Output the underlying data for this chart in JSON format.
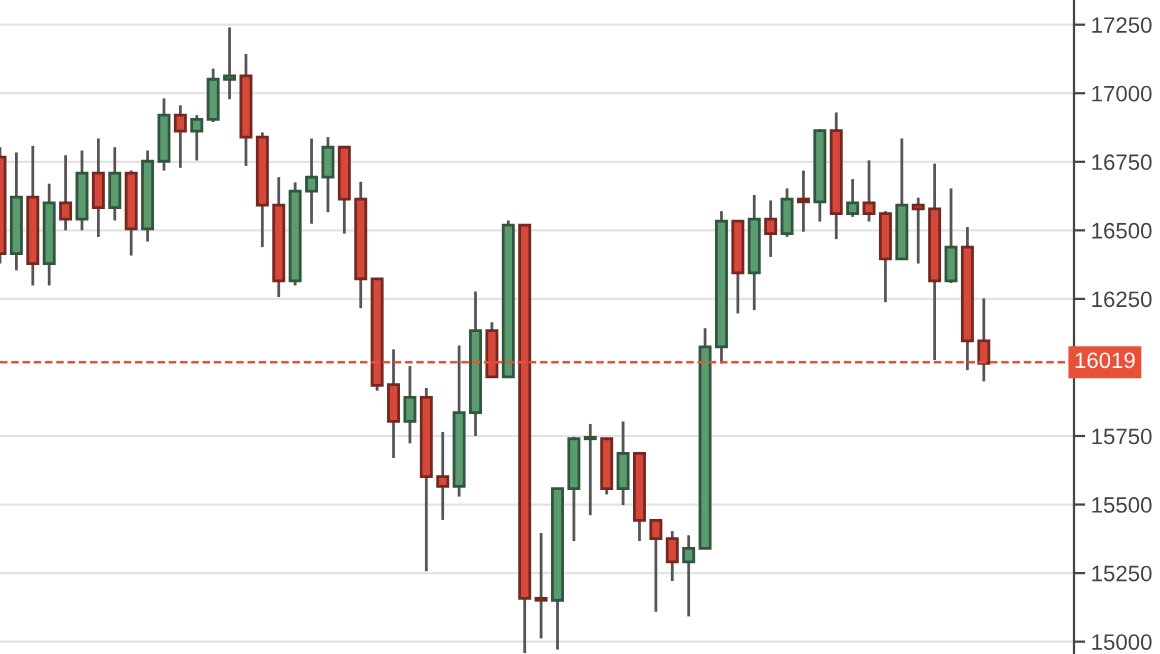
{
  "chart_data": {
    "type": "candlestick",
    "categories": [
      null,
      null,
      null,
      null,
      null,
      null,
      null,
      null,
      null,
      null,
      null,
      null,
      null,
      null,
      null,
      null,
      null,
      null,
      null,
      null,
      null,
      null,
      null,
      null,
      null,
      null,
      null,
      null,
      null,
      null,
      null,
      null,
      null,
      null,
      null,
      null,
      null,
      null,
      null,
      null,
      null,
      null,
      null,
      null,
      null,
      null,
      null,
      null,
      null,
      null,
      null,
      null,
      null,
      null,
      null,
      null,
      null,
      null,
      null,
      null,
      null
    ],
    "ohlc": [
      [
        16767,
        16803,
        16379,
        16415
      ],
      [
        16415,
        16784,
        16354,
        16621
      ],
      [
        16621,
        16808,
        16299,
        16379
      ],
      [
        16379,
        16670,
        16299,
        16600
      ],
      [
        16600,
        16774,
        16500,
        16541
      ],
      [
        16541,
        16791,
        16500,
        16709
      ],
      [
        16709,
        16835,
        16476,
        16583
      ],
      [
        16583,
        16803,
        16536,
        16709
      ],
      [
        16709,
        16718,
        16408,
        16505
      ],
      [
        16505,
        16791,
        16459,
        16752
      ],
      [
        16752,
        16981,
        16718,
        16920
      ],
      [
        16920,
        16956,
        16728,
        16862
      ],
      [
        16862,
        16920,
        16755,
        16905
      ],
      [
        16905,
        17090,
        16895,
        17051
      ],
      [
        17051,
        17240,
        16978,
        17063
      ],
      [
        17063,
        17143,
        16735,
        16840
      ],
      [
        16840,
        16857,
        16439,
        16592
      ],
      [
        16592,
        16694,
        16257,
        16316
      ],
      [
        16316,
        16675,
        16299,
        16643
      ],
      [
        16643,
        16835,
        16524,
        16694
      ],
      [
        16694,
        16840,
        16566,
        16803
      ],
      [
        16803,
        16803,
        16488,
        16614
      ],
      [
        16614,
        16677,
        16216,
        16323
      ],
      [
        16323,
        16323,
        15915,
        15935
      ],
      [
        15937,
        16066,
        15670,
        15803
      ],
      [
        15803,
        16005,
        15723,
        15891
      ],
      [
        15891,
        15925,
        15257,
        15602
      ],
      [
        15602,
        15765,
        15444,
        15566
      ],
      [
        15566,
        16080,
        15529,
        15835
      ],
      [
        15835,
        16277,
        15750,
        16134
      ],
      [
        16134,
        16165,
        15966,
        15966
      ],
      [
        15966,
        16536,
        15966,
        16519
      ],
      [
        16519,
        16519,
        14959,
        15158
      ],
      [
        15158,
        15396,
        15012,
        15151
      ],
      [
        15151,
        15558,
        14971,
        15558
      ],
      [
        15558,
        15747,
        15367,
        15740
      ],
      [
        15740,
        15794,
        15461,
        15745
      ],
      [
        15740,
        15740,
        15537,
        15558
      ],
      [
        15558,
        15803,
        15498,
        15687
      ],
      [
        15687,
        15687,
        15367,
        15442
      ],
      [
        15442,
        15442,
        15109,
        15376
      ],
      [
        15376,
        15403,
        15221,
        15291
      ],
      [
        15291,
        15388,
        15092,
        15340
      ],
      [
        15340,
        16143,
        15340,
        16075
      ],
      [
        16075,
        16570,
        16015,
        16534
      ],
      [
        16534,
        16534,
        16197,
        16345
      ],
      [
        16345,
        16629,
        16209,
        16541
      ],
      [
        16541,
        16609,
        16403,
        16488
      ],
      [
        16488,
        16653,
        16476,
        16614
      ],
      [
        16614,
        16718,
        16495,
        16604
      ],
      [
        16604,
        16869,
        16532,
        16864
      ],
      [
        16864,
        16930,
        16468,
        16561
      ],
      [
        16561,
        16687,
        16549,
        16600
      ],
      [
        16600,
        16755,
        16532,
        16561
      ],
      [
        16561,
        16570,
        16238,
        16396
      ],
      [
        16396,
        16835,
        16396,
        16592
      ],
      [
        16592,
        16619,
        16379,
        16578
      ],
      [
        16578,
        16743,
        16027,
        16316
      ],
      [
        16316,
        16653,
        16308,
        16439
      ],
      [
        16439,
        16512,
        15990,
        16097
      ],
      [
        16097,
        16252,
        15949,
        16015
      ]
    ],
    "colors": [
      "#d5483a",
      "#5b9b70",
      "#d5483a",
      "#5b9b70",
      "#d5483a",
      "#5b9b70",
      "#d5483a",
      "#5b9b70",
      "#d5483a",
      "#5b9b70",
      "#5b9b70",
      "#d5483a",
      "#5b9b70",
      "#5b9b70",
      "#5b9b70",
      "#d5483a",
      "#d5483a",
      "#d5483a",
      "#5b9b70",
      "#5b9b70",
      "#5b9b70",
      "#d5483a",
      "#d5483a",
      "#d5483a",
      "#d5483a",
      "#5b9b70",
      "#d5483a",
      "#d5483a",
      "#5b9b70",
      "#5b9b70",
      "#d5483a",
      "#5b9b70",
      "#d5483a",
      "#d5483a",
      "#5b9b70",
      "#5b9b70",
      "#5b9b70",
      "#d5483a",
      "#5b9b70",
      "#d5483a",
      "#d5483a",
      "#d5483a",
      "#5b9b70",
      "#5b9b70",
      "#5b9b70",
      "#d5483a",
      "#5b9b70",
      "#d5483a",
      "#5b9b70",
      "#d5483a",
      "#5b9b70",
      "#d5483a",
      "#5b9b70",
      "#d5483a",
      "#d5483a",
      "#5b9b70",
      "#d5483a",
      "#d5483a",
      "#5b9b70",
      "#d5483a",
      "#d5483a"
    ],
    "ylim": [
      14955,
      17340
    ],
    "yticks": [
      15000,
      15250,
      15500,
      15750,
      16250,
      16500,
      16750,
      17000,
      17250
    ],
    "ref_lines": [
      {
        "axis": "y",
        "value": 16019,
        "label": "16019",
        "color": "#e8503a",
        "line_style": "dashed"
      }
    ],
    "grid": "y"
  }
}
